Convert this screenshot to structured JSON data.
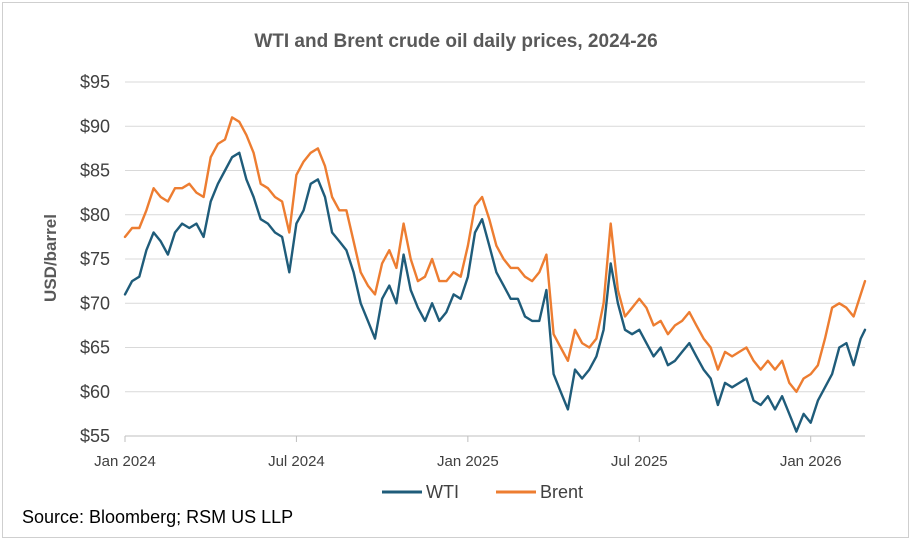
{
  "chart_data": {
    "type": "line",
    "title": "WTI and Brent crude oil daily prices, 2024-26",
    "xlabel": "",
    "ylabel": "USD/barrel",
    "ylim": [
      55,
      95
    ],
    "xlim": [
      0,
      25.9
    ],
    "x_unit": "months since Jan 2024",
    "y_ticks": [
      95,
      90,
      85,
      80,
      75,
      70,
      65,
      60,
      55
    ],
    "y_tick_labels": [
      "$95",
      "$90",
      "$85",
      "$80",
      "$75",
      "$70",
      "$65",
      "$60",
      "$55"
    ],
    "x_ticks": [
      0,
      6,
      12,
      18,
      24
    ],
    "x_tick_labels": [
      "Jan 2024",
      "Jul 2024",
      "Jan 2025",
      "Jul 2025",
      "Jan 2026"
    ],
    "grid": "horizontal",
    "legend": "bottom",
    "series": [
      {
        "name": "WTI",
        "color": "#1F5C7A",
        "x": [
          0,
          0.25,
          0.5,
          0.75,
          1.0,
          1.25,
          1.5,
          1.75,
          2.0,
          2.25,
          2.5,
          2.75,
          3.0,
          3.25,
          3.5,
          3.75,
          4.0,
          4.25,
          4.5,
          4.75,
          5.0,
          5.25,
          5.5,
          5.75,
          6.0,
          6.25,
          6.5,
          6.75,
          7.0,
          7.25,
          7.5,
          7.75,
          8.0,
          8.25,
          8.5,
          8.75,
          9.0,
          9.25,
          9.5,
          9.75,
          10.0,
          10.25,
          10.5,
          10.75,
          11.0,
          11.25,
          11.5,
          11.75,
          12.0,
          12.25,
          12.5,
          12.75,
          13.0,
          13.25,
          13.5,
          13.75,
          14.0,
          14.25,
          14.5,
          14.75,
          15.0,
          15.25,
          15.5,
          15.75,
          16.0,
          16.25,
          16.5,
          16.75,
          17.0,
          17.25,
          17.5,
          17.75,
          18.0,
          18.25,
          18.5,
          18.75,
          19.0,
          19.25,
          19.5,
          19.75,
          20.0,
          20.25,
          20.5,
          20.75,
          21.0,
          21.25,
          21.5,
          21.75,
          22.0,
          22.25,
          22.5,
          22.75,
          23.0,
          23.25,
          23.5,
          23.75,
          24.0,
          24.25,
          24.5,
          24.75,
          25.0,
          25.25,
          25.5,
          25.75,
          25.9
        ],
        "values": [
          71.0,
          72.5,
          73.0,
          76.0,
          78.0,
          77.0,
          75.5,
          78.0,
          79.0,
          78.5,
          79.0,
          77.5,
          81.5,
          83.5,
          85.0,
          86.5,
          87.0,
          84.0,
          82.0,
          79.5,
          79.0,
          78.0,
          77.5,
          73.5,
          79.0,
          80.5,
          83.5,
          84.0,
          82.0,
          78.0,
          77.0,
          76.0,
          73.5,
          70.0,
          68.0,
          66.0,
          70.5,
          72.0,
          70.0,
          75.5,
          71.5,
          69.5,
          68.0,
          70.0,
          68.0,
          69.0,
          71.0,
          70.5,
          73.0,
          78.0,
          79.5,
          76.5,
          73.5,
          72.0,
          70.5,
          70.5,
          68.5,
          68.0,
          68.0,
          71.5,
          62.0,
          60.0,
          58.0,
          62.5,
          61.5,
          62.5,
          64.0,
          67.0,
          74.5,
          70.0,
          67.0,
          66.5,
          67.0,
          65.5,
          64.0,
          65.0,
          63.0,
          63.5,
          64.5,
          65.5,
          64.0,
          62.5,
          61.5,
          58.5,
          61.0,
          60.5,
          61.0,
          61.5,
          59.0,
          58.5,
          59.5,
          58.0,
          59.5,
          57.5,
          55.5,
          57.5,
          56.5,
          59.0,
          60.5,
          62.0,
          65.0,
          65.5,
          63.0,
          66.0,
          67.0
        ]
      },
      {
        "name": "Brent",
        "color": "#ED7D31",
        "x": [
          0,
          0.25,
          0.5,
          0.75,
          1.0,
          1.25,
          1.5,
          1.75,
          2.0,
          2.25,
          2.5,
          2.75,
          3.0,
          3.25,
          3.5,
          3.75,
          4.0,
          4.25,
          4.5,
          4.75,
          5.0,
          5.25,
          5.5,
          5.75,
          6.0,
          6.25,
          6.5,
          6.75,
          7.0,
          7.25,
          7.5,
          7.75,
          8.0,
          8.25,
          8.5,
          8.75,
          9.0,
          9.25,
          9.5,
          9.75,
          10.0,
          10.25,
          10.5,
          10.75,
          11.0,
          11.25,
          11.5,
          11.75,
          12.0,
          12.25,
          12.5,
          12.75,
          13.0,
          13.25,
          13.5,
          13.75,
          14.0,
          14.25,
          14.5,
          14.75,
          15.0,
          15.25,
          15.5,
          15.75,
          16.0,
          16.25,
          16.5,
          16.75,
          17.0,
          17.25,
          17.5,
          17.75,
          18.0,
          18.25,
          18.5,
          18.75,
          19.0,
          19.25,
          19.5,
          19.75,
          20.0,
          20.25,
          20.5,
          20.75,
          21.0,
          21.25,
          21.5,
          21.75,
          22.0,
          22.25,
          22.5,
          22.75,
          23.0,
          23.25,
          23.5,
          23.75,
          24.0,
          24.25,
          24.5,
          24.75,
          25.0,
          25.25,
          25.5,
          25.75,
          25.9
        ],
        "values": [
          77.5,
          78.5,
          78.5,
          80.5,
          83.0,
          82.0,
          81.5,
          83.0,
          83.0,
          83.5,
          82.5,
          82.0,
          86.5,
          88.0,
          88.5,
          91.0,
          90.5,
          89.0,
          87.0,
          83.5,
          83.0,
          82.0,
          81.5,
          78.0,
          84.5,
          86.0,
          87.0,
          87.5,
          85.5,
          82.0,
          80.5,
          80.5,
          77.0,
          73.5,
          72.0,
          71.0,
          74.5,
          76.0,
          74.0,
          79.0,
          75.0,
          72.5,
          73.0,
          75.0,
          72.5,
          72.5,
          73.5,
          73.0,
          76.5,
          81.0,
          82.0,
          79.5,
          76.5,
          75.0,
          74.0,
          74.0,
          73.0,
          72.5,
          73.5,
          75.5,
          66.5,
          65.0,
          63.5,
          67.0,
          65.5,
          65.0,
          66.0,
          70.0,
          79.0,
          71.5,
          68.5,
          69.5,
          70.5,
          69.5,
          67.5,
          68.0,
          66.5,
          67.5,
          68.0,
          69.0,
          67.5,
          66.0,
          65.0,
          62.5,
          64.5,
          64.0,
          64.5,
          65.0,
          63.5,
          62.5,
          63.5,
          62.5,
          63.5,
          61.0,
          60.0,
          61.5,
          62.0,
          63.0,
          66.0,
          69.5,
          70.0,
          69.5,
          68.5,
          71.0,
          72.5
        ]
      }
    ],
    "source": "Source: Bloomberg; RSM US LLP"
  }
}
